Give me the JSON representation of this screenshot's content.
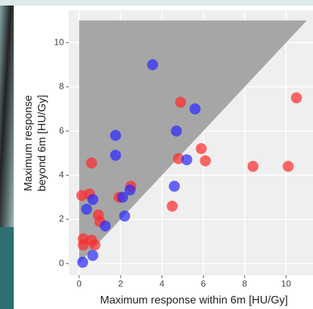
{
  "chart_data": {
    "type": "scatter",
    "x_label": "Maximum response within 6m [HU/Gy]",
    "y_label": [
      "Maximum response",
      "beyond 6m [HU/Gy]"
    ],
    "xlim": [
      -0.5,
      11.3
    ],
    "ylim": [
      -0.53,
      11.46
    ],
    "xticks": [
      0,
      2,
      4,
      6,
      8,
      10
    ],
    "yticks": [
      0,
      2,
      4,
      6,
      8,
      10
    ],
    "grid": true,
    "shaded_region": {
      "x": [
        0,
        0,
        11
      ],
      "y": [
        0,
        11,
        11
      ],
      "color": "#a6a6a6"
    },
    "series": [
      {
        "color": "#ff2a2a",
        "x": [
          10.5,
          4.9,
          5.9,
          6.1,
          4.8,
          8.4,
          10.1,
          0.6,
          2.5,
          1.93,
          0.5,
          0.13,
          4.5,
          0.93,
          1.0,
          0.2,
          0.6,
          0.2,
          0.76
        ],
        "y": [
          7.5,
          7.3,
          5.2,
          4.65,
          4.75,
          4.4,
          4.4,
          4.55,
          3.5,
          3.0,
          3.15,
          3.08,
          2.6,
          2.2,
          1.9,
          1.12,
          1.06,
          0.84,
          0.84
        ]
      },
      {
        "color": "#2a2aff",
        "x": [
          3.55,
          5.6,
          4.7,
          1.76,
          1.76,
          5.2,
          4.6,
          2.46,
          2.1,
          0.66,
          0.36,
          2.2,
          1.26,
          0.66,
          0.17
        ],
        "y": [
          9.0,
          7.0,
          6.0,
          5.8,
          4.9,
          4.7,
          3.5,
          3.33,
          3.0,
          2.9,
          2.46,
          2.15,
          1.7,
          0.37,
          0.06
        ]
      }
    ]
  }
}
